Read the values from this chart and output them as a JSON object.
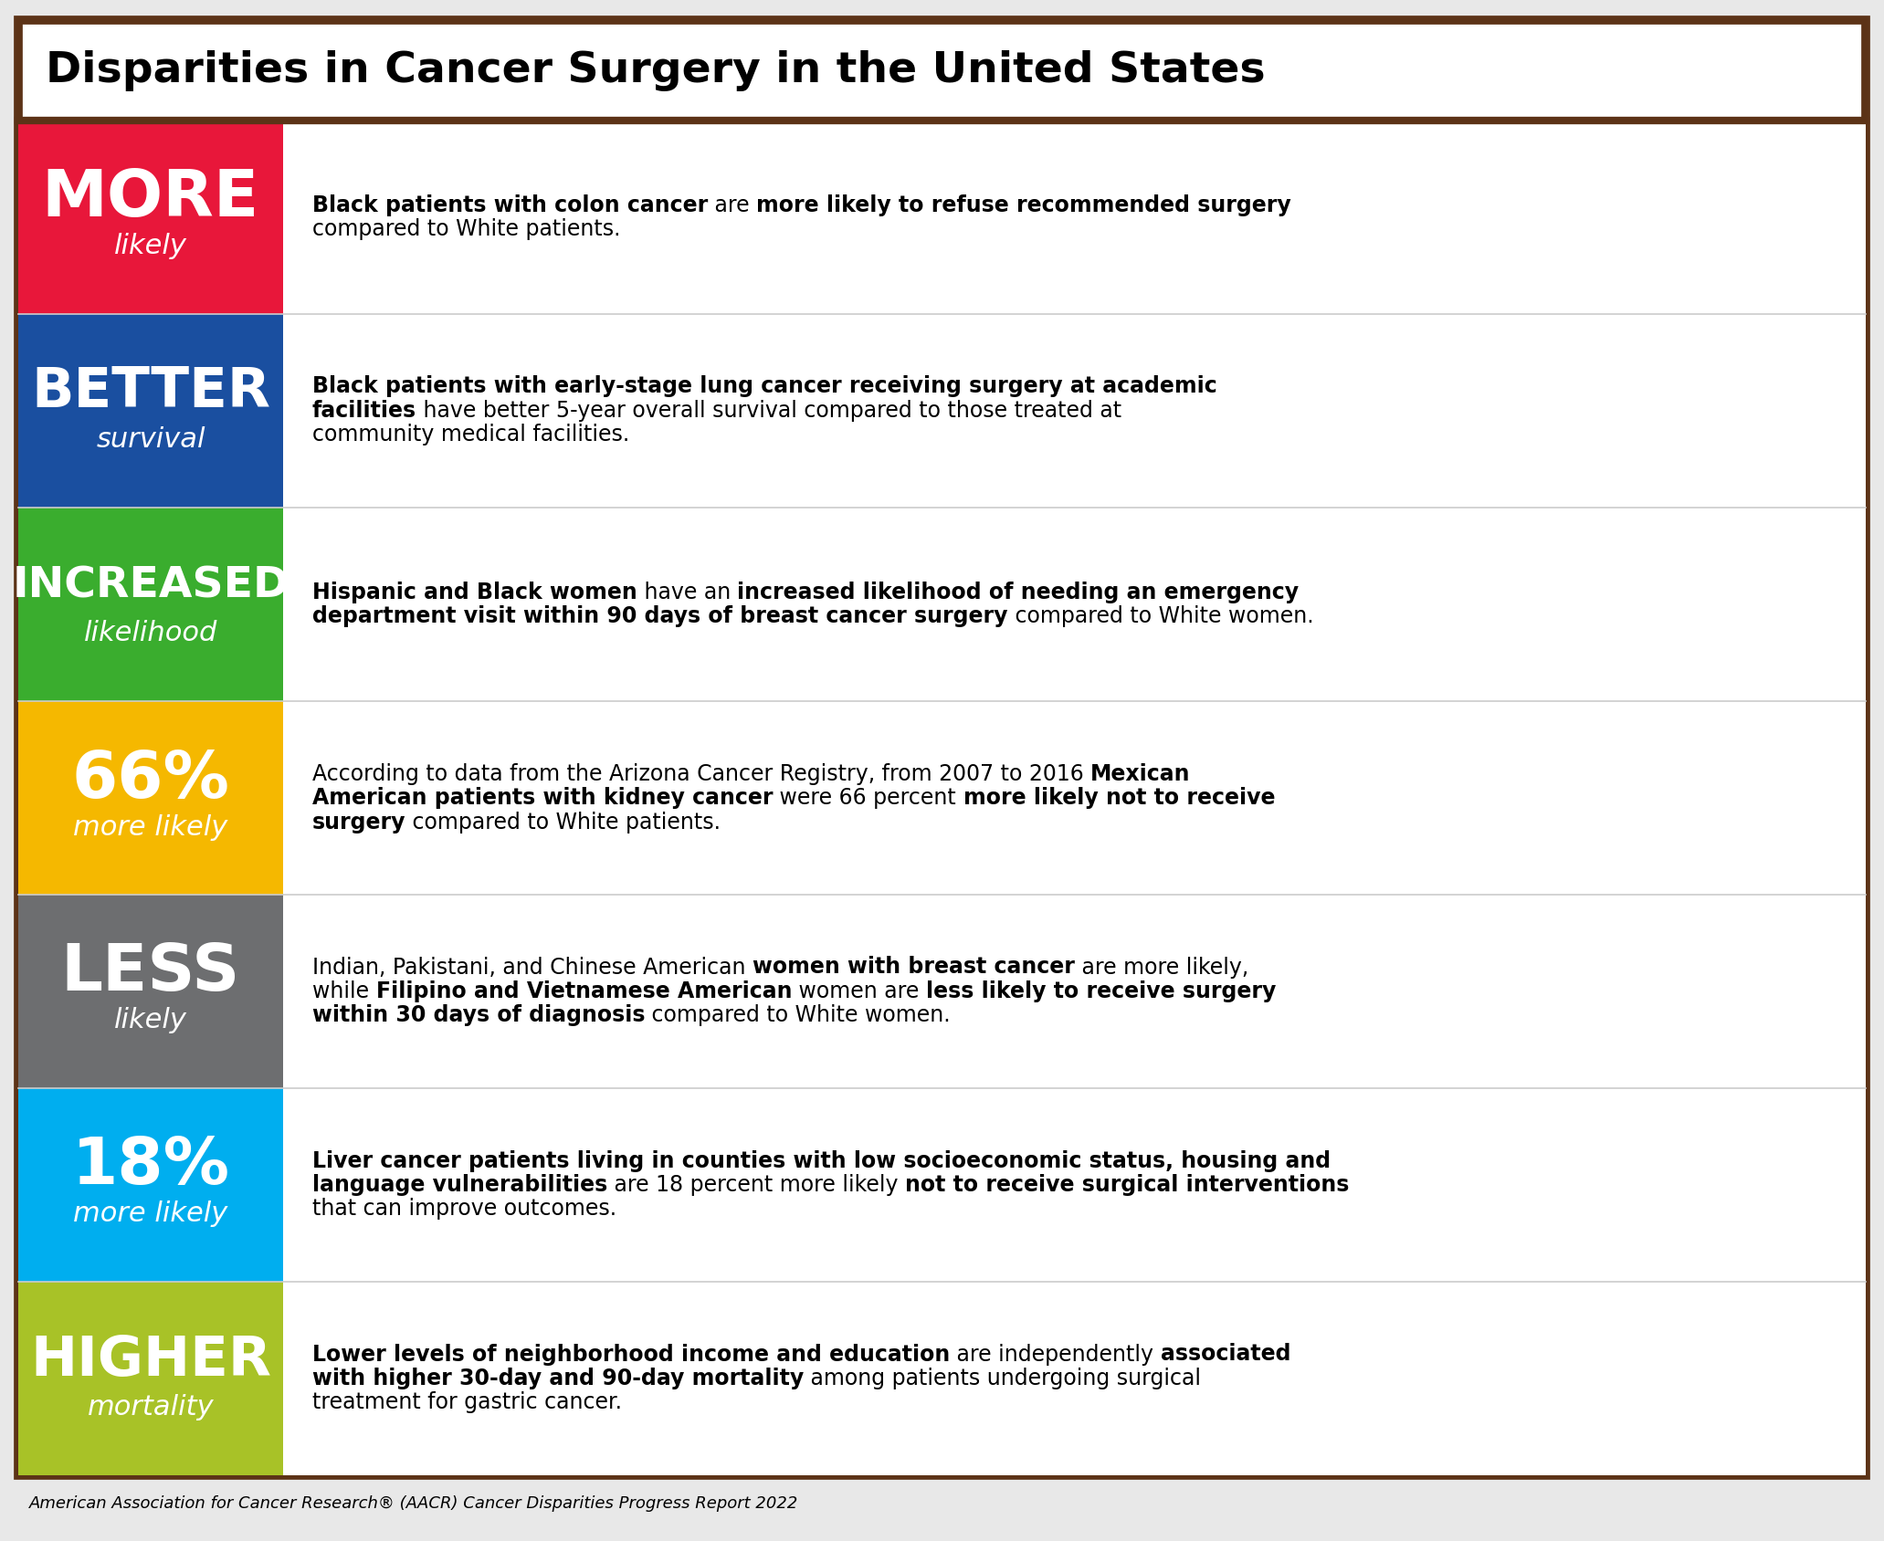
{
  "title": "Disparities in Cancer Surgery in the United States",
  "footer": "American Association for Cancer Research® (AACR) Cancer Disparities Progress Report 2022",
  "border_color": "#5C3317",
  "outer_bg": "#E8E8E8",
  "rows": [
    {
      "label_big": "MORE",
      "label_small": "likely",
      "bg_color": "#E8173A",
      "text_color": "#FFFFFF",
      "label_big_size": 52,
      "label_small_size": 22,
      "segments": [
        [
          {
            "t": "Black patients with colon cancer",
            "b": true
          },
          {
            "t": " are ",
            "b": false
          },
          {
            "t": "more likely to refuse recommended surgery",
            "b": true
          }
        ],
        [
          {
            "t": "compared to White patients.",
            "b": false
          }
        ]
      ]
    },
    {
      "label_big": "BETTER",
      "label_small": "survival",
      "bg_color": "#1A4FA0",
      "text_color": "#FFFFFF",
      "label_big_size": 44,
      "label_small_size": 22,
      "segments": [
        [
          {
            "t": "Black patients with early-stage lung cancer receiving surgery at academic",
            "b": true
          }
        ],
        [
          {
            "t": "facilities",
            "b": true
          },
          {
            "t": " have better 5-year overall survival compared to those treated at",
            "b": false
          }
        ],
        [
          {
            "t": "community medical facilities.",
            "b": false
          }
        ]
      ]
    },
    {
      "label_big": "INCREASED",
      "label_small": "likelihood",
      "bg_color": "#3AAD2E",
      "text_color": "#FFFFFF",
      "label_big_size": 34,
      "label_small_size": 22,
      "segments": [
        [
          {
            "t": "Hispanic and Black women",
            "b": true
          },
          {
            "t": " have an ",
            "b": false
          },
          {
            "t": "increased likelihood of needing an emergency",
            "b": true
          }
        ],
        [
          {
            "t": "department visit within 90 days of breast cancer surgery",
            "b": true
          },
          {
            "t": " compared to White women.",
            "b": false
          }
        ]
      ]
    },
    {
      "label_big": "66%",
      "label_small": "more likely",
      "bg_color": "#F5B800",
      "text_color": "#FFFFFF",
      "label_big_size": 52,
      "label_small_size": 22,
      "segments": [
        [
          {
            "t": "According to data from the Arizona Cancer Registry, from 2007 to 2016 ",
            "b": false
          },
          {
            "t": "Mexican",
            "b": true
          }
        ],
        [
          {
            "t": "American patients with kidney cancer",
            "b": true
          },
          {
            "t": " were 66 percent ",
            "b": false
          },
          {
            "t": "more likely not to receive",
            "b": true
          }
        ],
        [
          {
            "t": "surgery",
            "b": true
          },
          {
            "t": " compared to White patients.",
            "b": false
          }
        ]
      ]
    },
    {
      "label_big": "LESS",
      "label_small": "likely",
      "bg_color": "#6D6E70",
      "text_color": "#FFFFFF",
      "label_big_size": 52,
      "label_small_size": 22,
      "segments": [
        [
          {
            "t": "Indian, Pakistani, and Chinese American ",
            "b": false
          },
          {
            "t": "women with breast cancer",
            "b": true
          },
          {
            "t": " are more likely,",
            "b": false
          }
        ],
        [
          {
            "t": "while ",
            "b": false
          },
          {
            "t": "Filipino and Vietnamese American",
            "b": true
          },
          {
            "t": " women are ",
            "b": false
          },
          {
            "t": "less likely to receive surgery",
            "b": true
          }
        ],
        [
          {
            "t": "within 30 days of diagnosis",
            "b": true
          },
          {
            "t": " compared to White women.",
            "b": false
          }
        ]
      ]
    },
    {
      "label_big": "18%",
      "label_small": "more likely",
      "bg_color": "#00AEEF",
      "text_color": "#FFFFFF",
      "label_big_size": 52,
      "label_small_size": 22,
      "segments": [
        [
          {
            "t": "Liver cancer patients living in counties with low socioeconomic status, housing and",
            "b": true
          }
        ],
        [
          {
            "t": "language vulnerabilities",
            "b": true
          },
          {
            "t": " are 18 percent more likely ",
            "b": false
          },
          {
            "t": "not to receive surgical interventions",
            "b": true
          }
        ],
        [
          {
            "t": "that can improve outcomes.",
            "b": false
          }
        ]
      ]
    },
    {
      "label_big": "HIGHER",
      "label_small": "mortality",
      "bg_color": "#A8C227",
      "text_color": "#FFFFFF",
      "label_big_size": 44,
      "label_small_size": 22,
      "segments": [
        [
          {
            "t": "Lower levels of neighborhood income and education",
            "b": true
          },
          {
            "t": " are independently ",
            "b": false
          },
          {
            "t": "associated",
            "b": true
          }
        ],
        [
          {
            "t": "with higher 30-day and 90-day mortality",
            "b": true
          },
          {
            "t": " among patients undergoing surgical",
            "b": false
          }
        ],
        [
          {
            "t": "treatment for gastric cancer.",
            "b": false
          }
        ]
      ]
    }
  ]
}
